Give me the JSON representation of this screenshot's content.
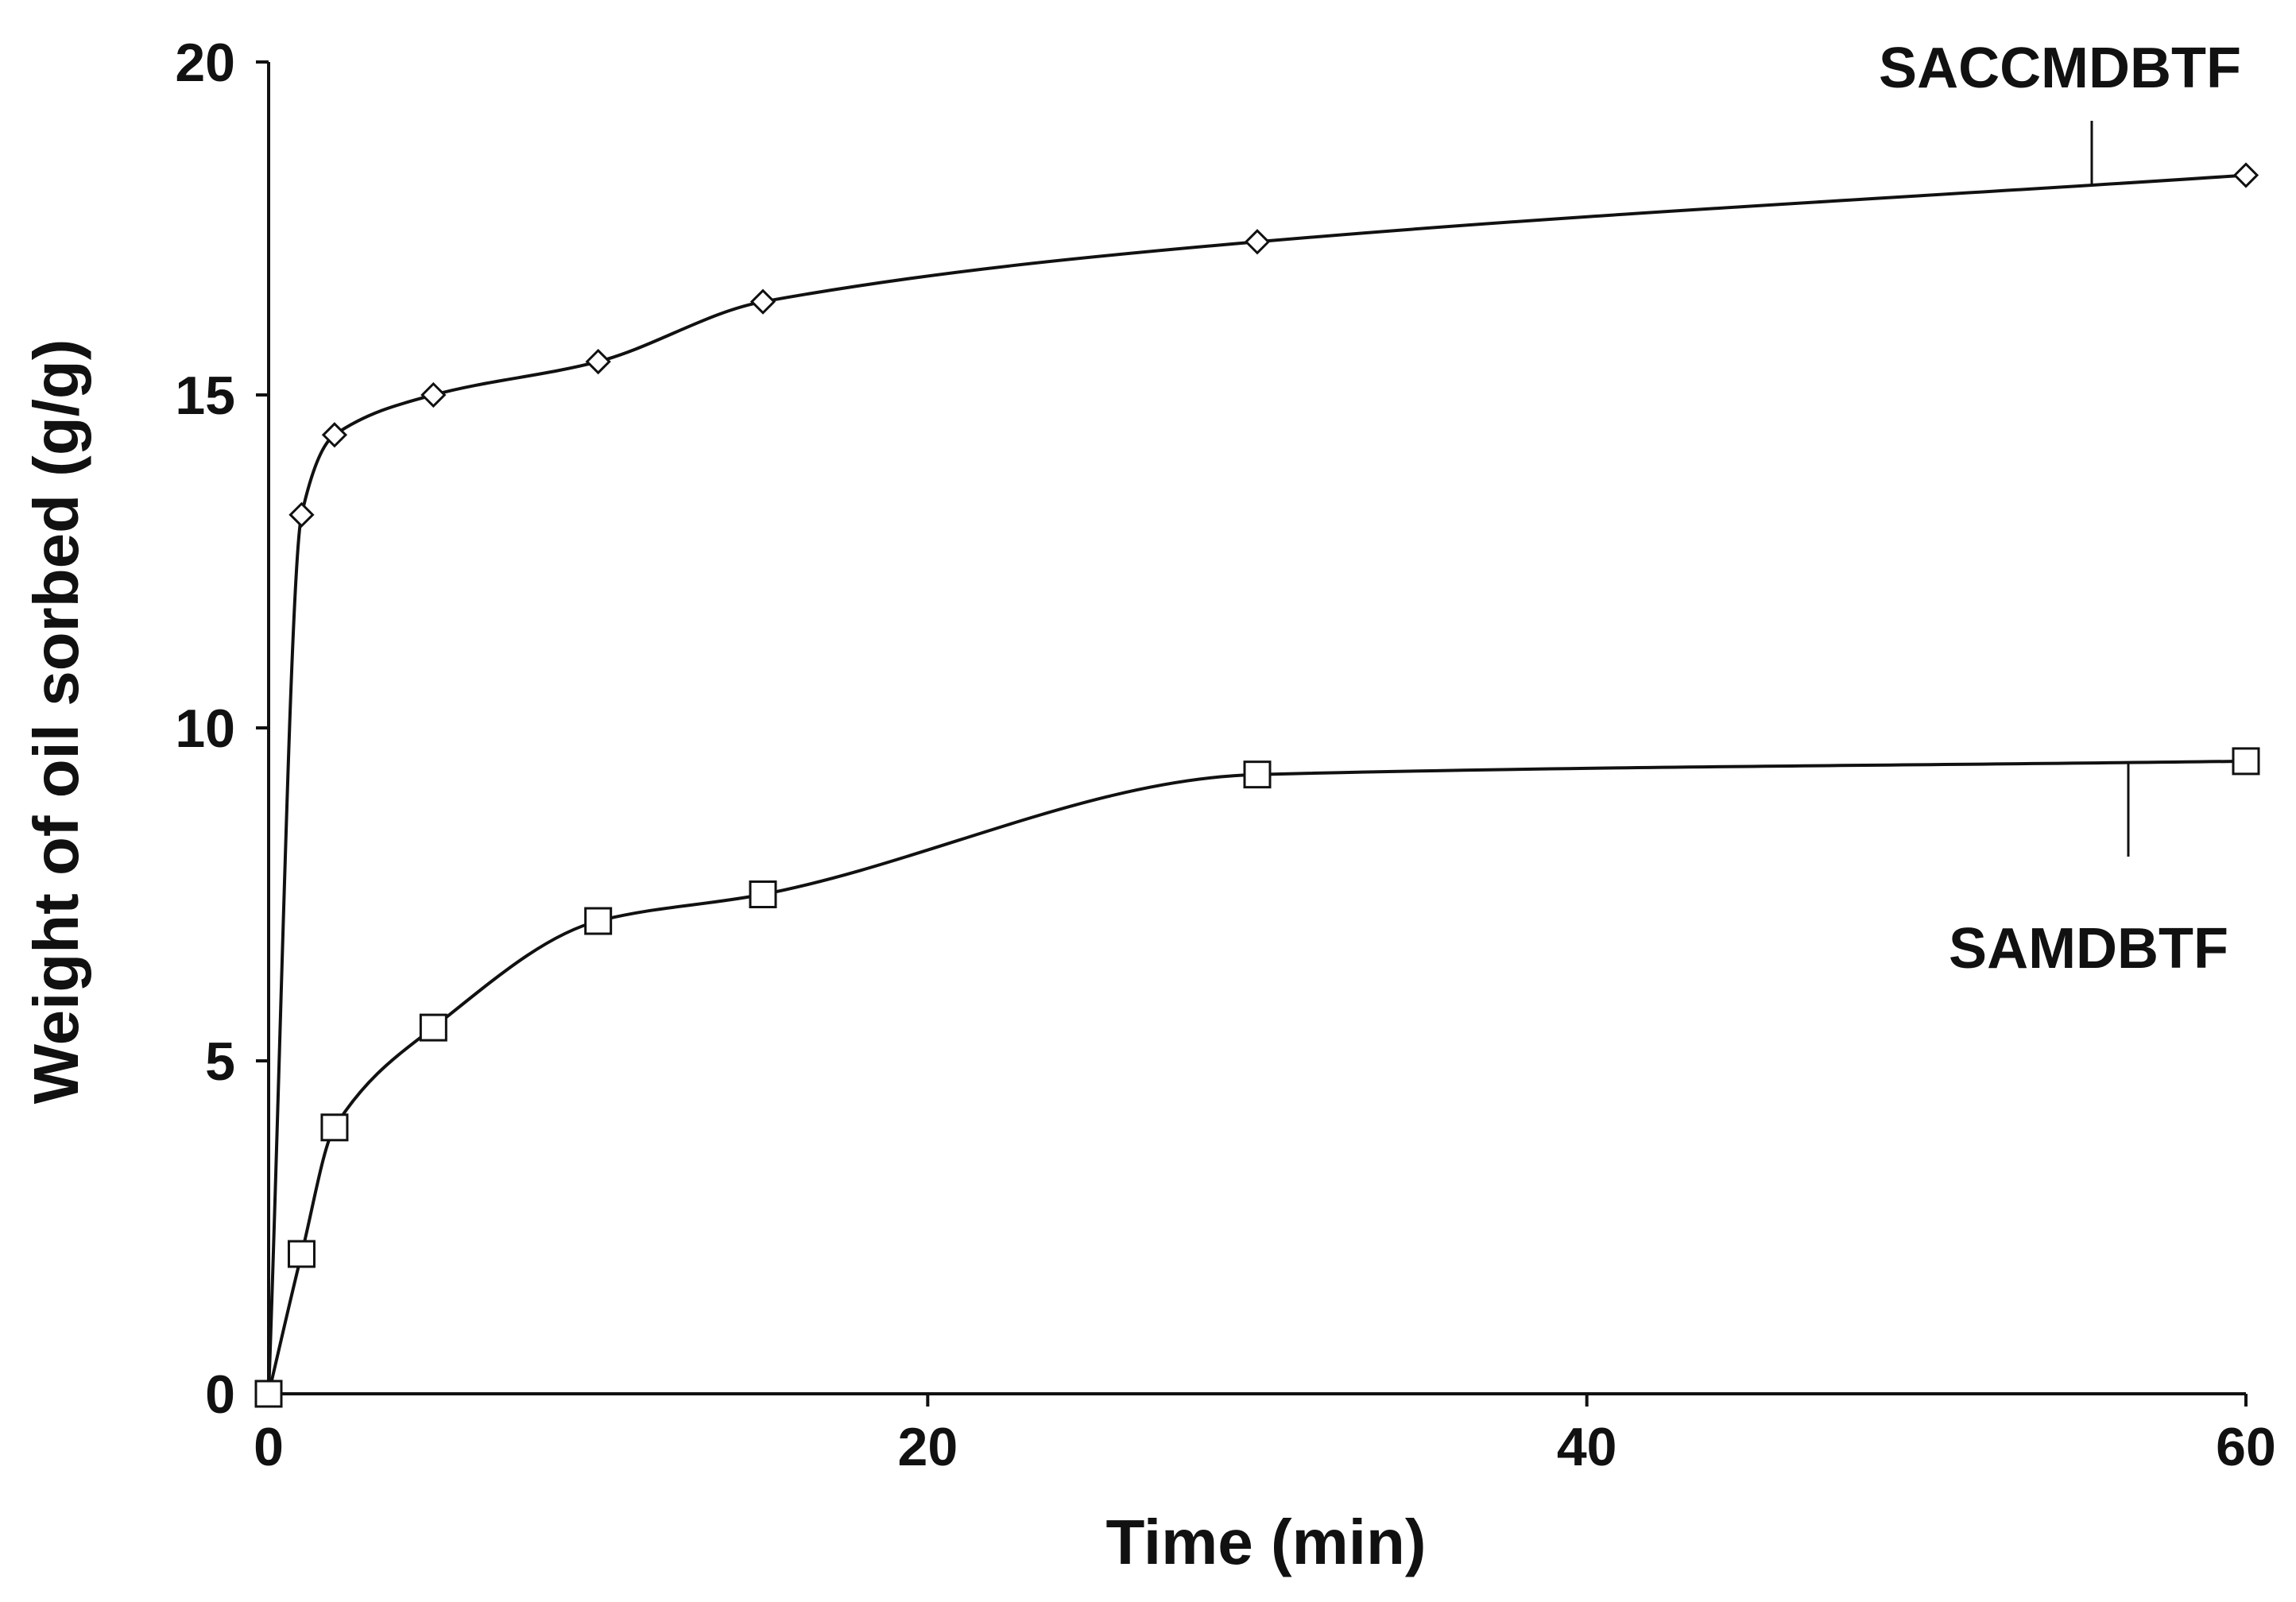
{
  "chart_data": {
    "type": "line",
    "xlabel": "Time (min)",
    "ylabel": "Weight of oil sorbed (g/g)",
    "xlim": [
      0,
      60
    ],
    "ylim": [
      0,
      20
    ],
    "xticks": [
      0,
      20,
      40,
      60
    ],
    "yticks": [
      0,
      5,
      10,
      15,
      20
    ],
    "grid": false,
    "legend": "none",
    "colors": {
      "line": "#111111",
      "marker_fill": "#ffffff",
      "axis": "#111111"
    },
    "series": [
      {
        "name": "SACCMDBTF",
        "marker": "diamond",
        "x": [
          0,
          1,
          2,
          5,
          10,
          15,
          30,
          60
        ],
        "y": [
          0,
          13.2,
          14.4,
          15.0,
          15.5,
          16.4,
          17.3,
          18.3
        ]
      },
      {
        "name": "SAMDBTF",
        "marker": "square",
        "x": [
          0,
          1,
          2,
          5,
          10,
          15,
          30,
          60
        ],
        "y": [
          0,
          2.1,
          4.0,
          5.5,
          7.1,
          7.5,
          9.3,
          9.5
        ]
      }
    ]
  }
}
